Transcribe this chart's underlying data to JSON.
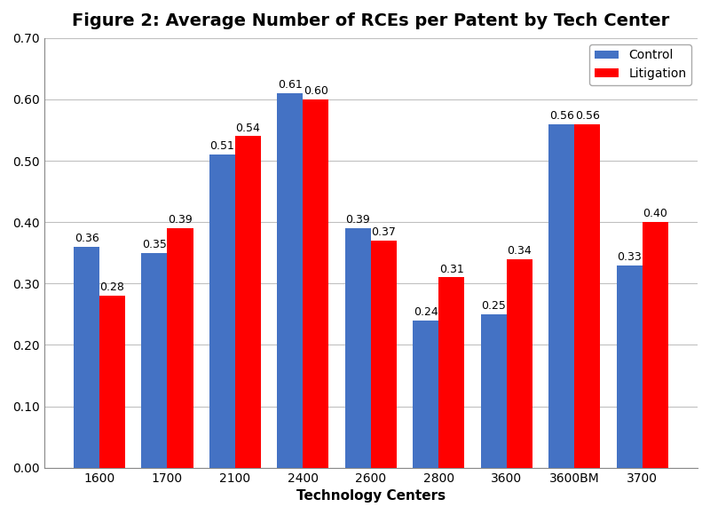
{
  "title": "Figure 2: Average Number of RCEs per Patent by Tech Center",
  "xlabel": "Technology Centers",
  "categories": [
    "1600",
    "1700",
    "2100",
    "2400",
    "2600",
    "2800",
    "3600",
    "3600BM",
    "3700"
  ],
  "control": [
    0.36,
    0.35,
    0.51,
    0.61,
    0.39,
    0.24,
    0.25,
    0.56,
    0.33
  ],
  "litigation": [
    0.28,
    0.39,
    0.54,
    0.6,
    0.37,
    0.31,
    0.34,
    0.56,
    0.4
  ],
  "control_color": "#4472C4",
  "litigation_color": "#FF0000",
  "ylim": [
    0.0,
    0.7
  ],
  "yticks": [
    0.0,
    0.1,
    0.2,
    0.3,
    0.4,
    0.5,
    0.6,
    0.7
  ],
  "legend_labels": [
    "Control",
    "Litigation"
  ],
  "bar_width": 0.38,
  "title_fontsize": 14,
  "label_fontsize": 11,
  "tick_fontsize": 10,
  "annotation_fontsize": 9,
  "background_color": "#FFFFFF",
  "plot_bg_color": "#FFFFFF",
  "grid_color": "#C0C0C0"
}
